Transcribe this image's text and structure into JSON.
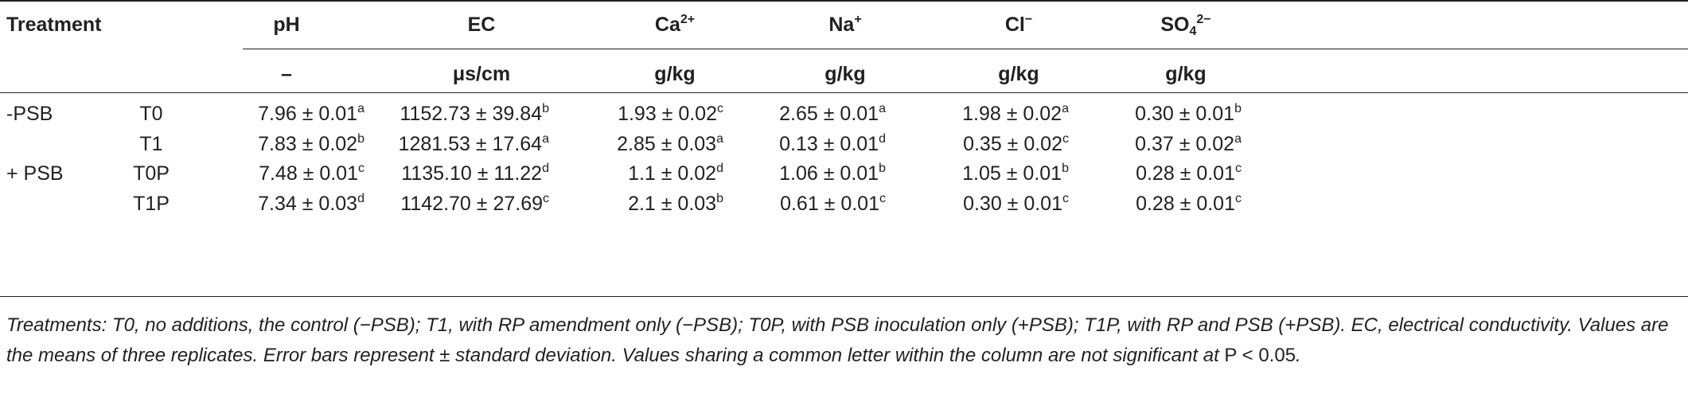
{
  "table": {
    "header": {
      "treatment": "Treatment",
      "columns": [
        {
          "name": "pH",
          "unit": "–"
        },
        {
          "name": "EC",
          "unit": "μs/cm"
        },
        {
          "name_base": "Ca",
          "name_sup": "2+",
          "unit": "g/kg"
        },
        {
          "name_base": "Na",
          "name_sup": "+",
          "unit": "g/kg"
        },
        {
          "name_base": "Cl",
          "name_sup": "−",
          "unit": "g/kg"
        },
        {
          "name_base": "SO",
          "name_sub": "4",
          "name_sup": "2−",
          "unit": "g/kg"
        }
      ]
    },
    "rows": [
      {
        "group": "-PSB",
        "treatment": "T0",
        "cells": [
          {
            "v": "7.96 ± 0.01",
            "l": "a"
          },
          {
            "v": "1152.73 ± 39.84",
            "l": "b"
          },
          {
            "v": "1.93 ± 0.02",
            "l": "c"
          },
          {
            "v": "2.65 ± 0.01",
            "l": "a"
          },
          {
            "v": "1.98 ± 0.02",
            "l": "a"
          },
          {
            "v": "0.30 ± 0.01",
            "l": "b"
          }
        ]
      },
      {
        "group": "",
        "treatment": "T1",
        "cells": [
          {
            "v": "7.83 ± 0.02",
            "l": "b"
          },
          {
            "v": "1281.53 ± 17.64",
            "l": "a"
          },
          {
            "v": "2.85 ± 0.03",
            "l": "a"
          },
          {
            "v": "0.13 ± 0.01",
            "l": "d"
          },
          {
            "v": "0.35 ± 0.02",
            "l": "c"
          },
          {
            "v": "0.37 ± 0.02",
            "l": "a"
          }
        ]
      },
      {
        "group": "+ PSB",
        "treatment": "T0P",
        "cells": [
          {
            "v": "7.48 ± 0.01",
            "l": "c"
          },
          {
            "v": "1135.10 ± 11.22",
            "l": "d"
          },
          {
            "v": "1.1 ± 0.02",
            "l": "d"
          },
          {
            "v": "1.06 ± 0.01",
            "l": "b"
          },
          {
            "v": "1.05 ± 0.01",
            "l": "b"
          },
          {
            "v": "0.28 ± 0.01",
            "l": "c"
          }
        ]
      },
      {
        "group": "",
        "treatment": "T1P",
        "cells": [
          {
            "v": "7.34 ± 0.03",
            "l": "d"
          },
          {
            "v": "1142.70 ± 27.69",
            "l": "c"
          },
          {
            "v": "2.1 ± 0.03",
            "l": "b"
          },
          {
            "v": "0.61 ± 0.01",
            "l": "c"
          },
          {
            "v": "0.30 ± 0.01",
            "l": "c"
          },
          {
            "v": "0.28 ± 0.01",
            "l": "c"
          }
        ]
      }
    ]
  },
  "footnote": {
    "text": "Treatments: T0, no additions, the control (−PSB); T1, with RP amendment only (−PSB); T0P, with PSB inoculation only (+PSB); T1P, with RP and PSB (+PSB). EC, electrical conductivity. Values are the means of three replicates. Error bars represent ± standard deviation. Values sharing a common letter within the column are not significant at ",
    "p_value": "P  <  0.05",
    "end": "."
  }
}
